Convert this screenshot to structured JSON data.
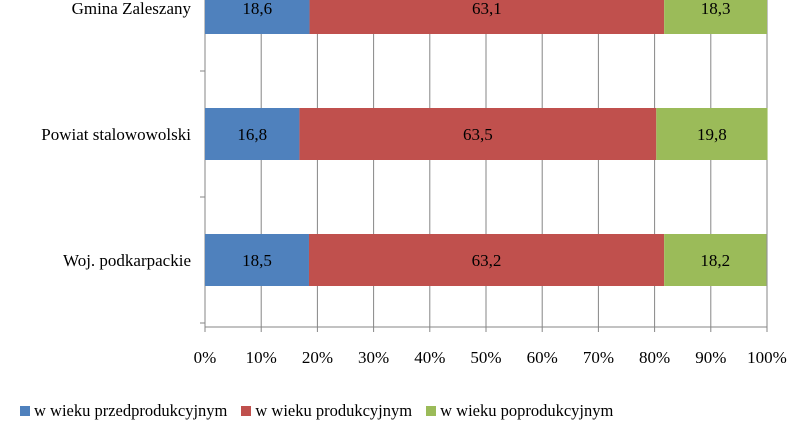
{
  "chart_data": {
    "type": "bar",
    "orientation": "horizontal",
    "stacked": "100%",
    "categories": [
      "Gmina Zaleszany",
      "Powiat stalowowolski",
      "Woj. podkarpackie"
    ],
    "series": [
      {
        "name": "w wieku przedprodukcyjnym",
        "color": "#4F81BD",
        "values": [
          18.6,
          16.8,
          18.5
        ],
        "labels": [
          "18,6",
          "16,8",
          "18,5"
        ]
      },
      {
        "name": "w wieku produkcyjnym",
        "color": "#C0504D",
        "values": [
          63.1,
          63.5,
          63.2
        ],
        "labels": [
          "63,1",
          "63,5",
          "63,2"
        ]
      },
      {
        "name": "w wieku poprodukcyjnym",
        "color": "#9BBB59",
        "values": [
          18.3,
          19.8,
          18.2
        ],
        "labels": [
          "18,3",
          "19,8",
          "18,2"
        ]
      }
    ],
    "xticks": [
      "0%",
      "10%",
      "20%",
      "30%",
      "40%",
      "50%",
      "60%",
      "70%",
      "80%",
      "90%",
      "100%"
    ],
    "xlim": [
      0,
      100
    ],
    "grid": true,
    "legend_position": "bottom"
  }
}
